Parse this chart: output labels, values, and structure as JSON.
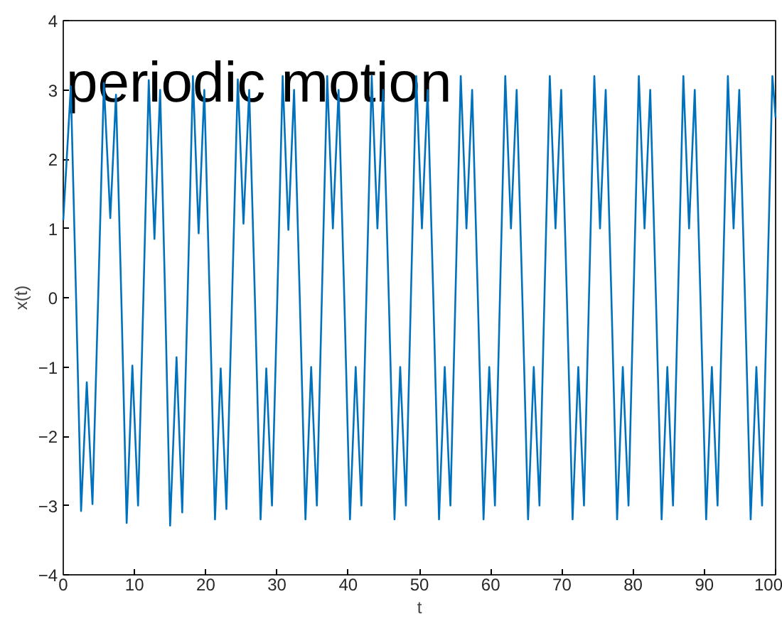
{
  "chart_data": {
    "type": "line",
    "title": "periodic motion",
    "xlabel": "t",
    "ylabel": "x(t)",
    "xlim": [
      0,
      100
    ],
    "ylim": [
      -4,
      4
    ],
    "xticks": [
      0,
      10,
      20,
      30,
      40,
      50,
      60,
      70,
      80,
      90,
      100
    ],
    "yticks": [
      -4,
      -3,
      -2,
      -1,
      0,
      1,
      2,
      3,
      4
    ],
    "grid": false,
    "series": [
      {
        "color": "#0072bd",
        "x": [
          0,
          1.06,
          1.8,
          2.5,
          3.3,
          4.1,
          4.9,
          5.7,
          6.6,
          7.4,
          8.15,
          8.9,
          9.7,
          10.5,
          11.25,
          12.0,
          12.8,
          13.6,
          14.3,
          15.0,
          15.9,
          16.7,
          17.45,
          18.2,
          19.0,
          19.8,
          20.55,
          21.3,
          22.1,
          22.9,
          23.7,
          24.5,
          25.3,
          26.1,
          26.9,
          27.7,
          28.5,
          29.3,
          30.05,
          30.8,
          31.6,
          32.4,
          33.2,
          34.0,
          34.8,
          35.6,
          36.3,
          37.05,
          37.85,
          38.65,
          39.45,
          40.25,
          41.05,
          41.85,
          42.55,
          43.3,
          44.1,
          44.9,
          45.7,
          46.5,
          47.3,
          48.1,
          48.8,
          49.55,
          50.35,
          51.15,
          51.95,
          52.75,
          53.55,
          54.35,
          55.05,
          55.8,
          56.6,
          57.4,
          58.2,
          59.0,
          59.8,
          60.6,
          61.3,
          62.05,
          62.85,
          63.65,
          64.45,
          65.25,
          66.05,
          66.85,
          67.55,
          68.3,
          69.1,
          69.9,
          70.7,
          71.5,
          72.3,
          73.1,
          73.8,
          74.55,
          75.35,
          76.15,
          76.95,
          77.75,
          78.55,
          79.35,
          80.05,
          80.8,
          81.6,
          82.4,
          83.2,
          84.0,
          84.8,
          85.6,
          86.3,
          87.05,
          87.85,
          88.65,
          89.45,
          90.25,
          91.05,
          91.85,
          92.55,
          93.3,
          94.1,
          94.9,
          95.7,
          96.5,
          97.3,
          98.1,
          98.8,
          99.55,
          100
        ],
        "values": [
          1.12,
          3.05,
          0,
          -3.08,
          -1.22,
          -2.98,
          0,
          3.1,
          1.15,
          2.93,
          0,
          -3.25,
          -0.98,
          -3.0,
          0,
          3.14,
          0.85,
          3.0,
          0,
          -3.29,
          -0.86,
          -3.1,
          0,
          3.2,
          0.93,
          3.0,
          0,
          -3.2,
          -1.02,
          -3.05,
          0,
          3.15,
          1.07,
          3.0,
          0,
          -3.2,
          -1.02,
          -3.0,
          0,
          3.2,
          0.98,
          3.0,
          0,
          -3.2,
          -1.0,
          -3.0,
          0,
          3.2,
          1.0,
          3.0,
          0,
          -3.2,
          -1.0,
          -3.0,
          0,
          3.2,
          1.0,
          3.0,
          0,
          -3.2,
          -1.0,
          -3.0,
          0,
          3.2,
          1.0,
          3.0,
          0,
          -3.2,
          -1.0,
          -3.0,
          0,
          3.2,
          1.0,
          3.0,
          0,
          -3.2,
          -1.0,
          -3.0,
          0,
          3.2,
          1.0,
          3.0,
          0,
          -3.2,
          -1.0,
          -3.0,
          0,
          3.2,
          1.0,
          3.0,
          0,
          -3.2,
          -1.0,
          -3.0,
          0,
          3.2,
          1.0,
          3.0,
          0,
          -3.2,
          -1.0,
          -3.0,
          0,
          3.2,
          1.0,
          3.0,
          0,
          -3.2,
          -1.0,
          -3.0,
          0,
          3.2,
          1.0,
          3.0,
          0,
          -3.2,
          -1.0,
          -3.0,
          0,
          3.2,
          1.0,
          3.0,
          0,
          -3.2,
          -1.0,
          -3.0,
          0,
          3.2,
          2.6
        ]
      }
    ]
  }
}
